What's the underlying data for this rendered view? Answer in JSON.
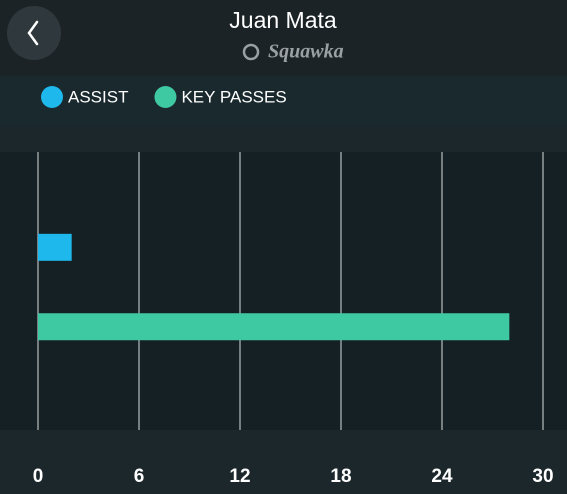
{
  "chart_data": {
    "type": "hbar",
    "title": "Juan Mata",
    "subtitle": "Squawka",
    "series": [
      {
        "name": "ASSIST",
        "color": "#1fb8ec",
        "values": [
          2
        ]
      },
      {
        "name": "KEY PASSES",
        "color": "#3ec9a2",
        "values": [
          28
        ]
      }
    ],
    "xlim": [
      0,
      30
    ],
    "xticks": [
      0,
      6,
      12,
      18,
      24,
      30
    ],
    "grid": true
  }
}
